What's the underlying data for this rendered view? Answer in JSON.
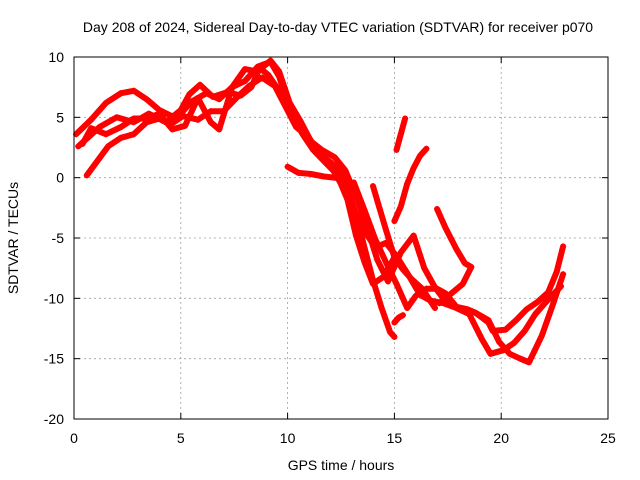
{
  "chart_data": {
    "type": "scatter",
    "title": "Day 208 of 2024, Sidereal Day-to-day VTEC variation (SDTVAR) for receiver p070",
    "xlabel": "GPS time / hours",
    "ylabel": "SDTVAR / TECUs",
    "xlim": [
      0,
      25
    ],
    "ylim": [
      -20,
      10
    ],
    "xticks": [
      "0",
      "5",
      "10",
      "15",
      "20",
      "25"
    ],
    "yticks": [
      "-20",
      "-15",
      "-10",
      "-5",
      "0",
      "5",
      "10"
    ],
    "grid": true,
    "marker": "+",
    "color": "#ff0000",
    "series": [
      {
        "points": [
          [
            0.1,
            3.6
          ],
          [
            0.8,
            4.8
          ],
          [
            1.5,
            6.2
          ],
          [
            2.2,
            7.0
          ],
          [
            2.8,
            7.2
          ],
          [
            3.4,
            6.5
          ],
          [
            4.0,
            5.6
          ],
          [
            4.8,
            4.9
          ],
          [
            5.5,
            6.3
          ],
          [
            6.2,
            7.0
          ],
          [
            6.8,
            6.5
          ],
          [
            7.4,
            7.5
          ],
          [
            8.0,
            8.0
          ],
          [
            8.6,
            9.2
          ],
          [
            9.2,
            9.6
          ],
          [
            9.6,
            8.4
          ],
          [
            10.0,
            6.2
          ],
          [
            10.4,
            4.6
          ],
          [
            10.8,
            3.4
          ],
          [
            11.2,
            2.6
          ],
          [
            11.6,
            1.8
          ],
          [
            12.0,
            1.3
          ],
          [
            12.4,
            0.6
          ],
          [
            12.8,
            -0.9
          ],
          [
            13.2,
            -3.0
          ],
          [
            13.6,
            -5.8
          ],
          [
            14.0,
            -8.5
          ],
          [
            14.4,
            -10.8
          ],
          [
            14.8,
            -12.8
          ],
          [
            15.0,
            -13.2
          ]
        ]
      },
      {
        "points": [
          [
            0.2,
            2.6
          ],
          [
            0.7,
            3.4
          ],
          [
            1.2,
            4.2
          ],
          [
            2.0,
            5.0
          ],
          [
            2.8,
            4.6
          ],
          [
            3.5,
            5.3
          ],
          [
            4.3,
            4.6
          ],
          [
            5.0,
            5.6
          ],
          [
            5.4,
            6.9
          ],
          [
            5.9,
            7.7
          ],
          [
            6.5,
            6.7
          ],
          [
            7.2,
            7.1
          ],
          [
            7.8,
            6.8
          ],
          [
            8.3,
            7.5
          ],
          [
            8.7,
            9.1
          ],
          [
            9.1,
            8.5
          ],
          [
            9.6,
            7.2
          ],
          [
            10.2,
            5.3
          ],
          [
            10.7,
            3.6
          ],
          [
            11.2,
            2.3
          ],
          [
            11.8,
            1.2
          ],
          [
            12.3,
            0.3
          ],
          [
            12.8,
            -1.8
          ],
          [
            13.2,
            -4.8
          ],
          [
            13.6,
            -7.0
          ],
          [
            14.0,
            -8.8
          ],
          [
            14.5,
            -8.2
          ],
          [
            15.0,
            -6.6
          ]
        ]
      },
      {
        "points": [
          [
            0.4,
            2.8
          ],
          [
            0.8,
            4.1
          ],
          [
            1.5,
            3.6
          ],
          [
            2.2,
            4.2
          ],
          [
            2.8,
            4.9
          ],
          [
            3.4,
            4.9
          ],
          [
            4.0,
            5.3
          ],
          [
            4.6,
            4.0
          ],
          [
            5.2,
            4.3
          ],
          [
            5.8,
            6.6
          ],
          [
            6.4,
            4.6
          ],
          [
            6.8,
            4.0
          ],
          [
            7.4,
            7.5
          ],
          [
            8.0,
            9.0
          ],
          [
            8.6,
            8.8
          ],
          [
            9.2,
            9.7
          ],
          [
            9.6,
            8.8
          ],
          [
            10.1,
            6.2
          ],
          [
            10.6,
            4.7
          ],
          [
            11.1,
            3.0
          ],
          [
            11.6,
            2.3
          ],
          [
            12.2,
            1.7
          ],
          [
            12.7,
            0.6
          ],
          [
            13.2,
            -1.5
          ],
          [
            13.7,
            -4.0
          ],
          [
            14.2,
            -6.8
          ],
          [
            14.7,
            -8.6
          ],
          [
            15.3,
            -6.2
          ],
          [
            15.9,
            -4.8
          ],
          [
            16.4,
            -7.5
          ],
          [
            16.9,
            -9.1
          ],
          [
            17.5,
            -10.5
          ],
          [
            18.2,
            -11.0
          ],
          [
            18.8,
            -11.2
          ],
          [
            19.4,
            -11.8
          ],
          [
            19.9,
            -13.6
          ],
          [
            20.4,
            -14.6
          ],
          [
            20.9,
            -15.0
          ],
          [
            21.3,
            -15.3
          ],
          [
            21.9,
            -13.1
          ],
          [
            22.4,
            -10.6
          ],
          [
            22.9,
            -8.0
          ]
        ]
      },
      {
        "points": [
          [
            0.6,
            0.2
          ],
          [
            1.1,
            1.4
          ],
          [
            1.6,
            2.6
          ],
          [
            2.2,
            3.3
          ],
          [
            2.8,
            3.6
          ],
          [
            3.4,
            4.6
          ],
          [
            4.0,
            4.9
          ],
          [
            4.5,
            4.4
          ],
          [
            5.1,
            5.1
          ],
          [
            5.8,
            4.8
          ],
          [
            6.4,
            5.5
          ],
          [
            7.0,
            5.5
          ],
          [
            7.6,
            6.6
          ],
          [
            8.2,
            7.6
          ],
          [
            8.8,
            8.3
          ],
          [
            9.4,
            7.6
          ],
          [
            9.9,
            5.9
          ],
          [
            10.4,
            4.2
          ],
          [
            11.0,
            3.3
          ],
          [
            11.5,
            2.0
          ],
          [
            12.1,
            0.7
          ],
          [
            12.6,
            -0.8
          ],
          [
            13.1,
            -2.6
          ],
          [
            13.6,
            -4.4
          ],
          [
            14.1,
            -5.8
          ],
          [
            14.6,
            -5.4
          ],
          [
            15.1,
            -6.5
          ],
          [
            15.7,
            -8.2
          ],
          [
            16.2,
            -9.7
          ],
          [
            16.7,
            -10.2
          ],
          [
            17.3,
            -10.4
          ],
          [
            17.9,
            -10.8
          ],
          [
            18.5,
            -11.3
          ],
          [
            19.1,
            -13.4
          ],
          [
            19.5,
            -14.6
          ],
          [
            20.1,
            -14.3
          ],
          [
            20.6,
            -13.7
          ],
          [
            21.1,
            -12.7
          ],
          [
            21.6,
            -11.3
          ],
          [
            22.2,
            -10.1
          ],
          [
            22.8,
            -9.0
          ]
        ]
      },
      {
        "points": [
          [
            10.0,
            0.9
          ],
          [
            10.5,
            0.4
          ],
          [
            11.1,
            0.3
          ],
          [
            11.7,
            0.1
          ],
          [
            12.2,
            0.0
          ],
          [
            12.7,
            0.0
          ]
        ]
      },
      {
        "points": [
          [
            13.1,
            -0.4
          ],
          [
            13.6,
            -2.7
          ],
          [
            14.1,
            -5.1
          ],
          [
            14.6,
            -7.0
          ],
          [
            15.1,
            -8.8
          ],
          [
            15.6,
            -10.8
          ],
          [
            16.0,
            -9.8
          ],
          [
            16.5,
            -9.2
          ],
          [
            17.0,
            -9.2
          ],
          [
            17.4,
            -9.6
          ],
          [
            17.9,
            -10.7
          ],
          [
            18.4,
            -10.9
          ],
          [
            18.8,
            -11.2
          ],
          [
            19.1,
            -11.6
          ],
          [
            19.4,
            -12.0
          ],
          [
            19.6,
            -12.7
          ],
          [
            20.2,
            -12.6
          ],
          [
            20.7,
            -11.8
          ],
          [
            21.2,
            -10.9
          ],
          [
            21.7,
            -10.3
          ],
          [
            22.2,
            -9.5
          ],
          [
            22.6,
            -7.8
          ],
          [
            22.9,
            -5.7
          ]
        ]
      },
      {
        "points": [
          [
            14.0,
            -0.7
          ],
          [
            14.3,
            -2.5
          ],
          [
            14.6,
            -4.3
          ],
          [
            15.0,
            -6.6
          ],
          [
            15.4,
            -7.6
          ],
          [
            15.8,
            -8.4
          ],
          [
            16.3,
            -9.2
          ],
          [
            16.9,
            -10.8
          ]
        ]
      },
      {
        "points": [
          [
            15.1,
            2.3
          ],
          [
            15.3,
            3.6
          ],
          [
            15.5,
            4.9
          ]
        ]
      },
      {
        "points": [
          [
            15.0,
            -3.6
          ],
          [
            15.3,
            -2.4
          ],
          [
            15.6,
            -0.5
          ],
          [
            15.9,
            0.8
          ],
          [
            16.2,
            1.8
          ],
          [
            16.5,
            2.4
          ]
        ]
      },
      {
        "points": [
          [
            17.0,
            -2.6
          ],
          [
            17.4,
            -4.2
          ],
          [
            17.9,
            -5.9
          ],
          [
            18.3,
            -7.1
          ],
          [
            18.6,
            -7.4
          ],
          [
            18.2,
            -8.8
          ],
          [
            17.6,
            -9.7
          ],
          [
            17.1,
            -10.4
          ]
        ]
      },
      {
        "points": [
          [
            15.0,
            -12.0
          ],
          [
            15.2,
            -11.6
          ],
          [
            15.4,
            -11.4
          ]
        ]
      }
    ]
  }
}
